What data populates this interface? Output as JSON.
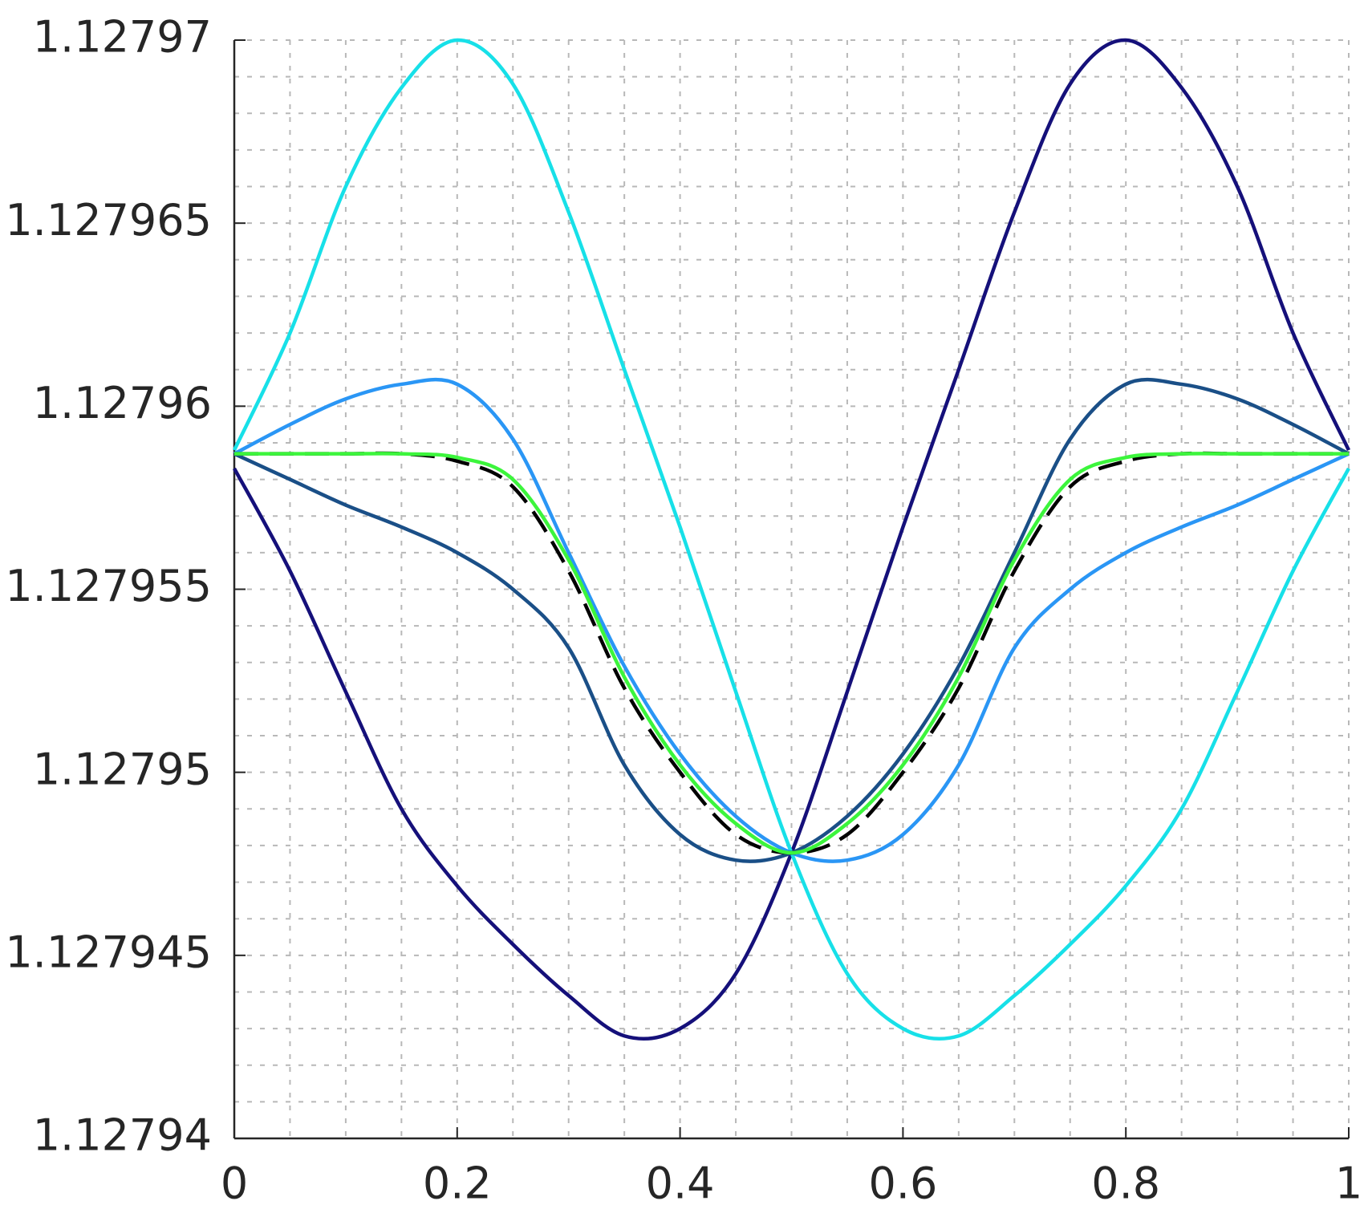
{
  "chart_data": {
    "type": "line",
    "x": [
      0,
      0.05,
      0.1,
      0.15,
      0.2,
      0.25,
      0.3,
      0.35,
      0.4,
      0.45,
      0.5,
      0.55,
      0.6,
      0.65,
      0.7,
      0.75,
      0.8,
      0.85,
      0.9,
      0.95,
      1
    ],
    "series": [
      {
        "color": "#15107a",
        "values": [
          1.1279583,
          1.1279555,
          1.1279522,
          1.127949,
          1.1279469,
          1.1279453,
          1.1279439,
          1.1279428,
          1.127943,
          1.1279445,
          1.1279478,
          1.1279522,
          1.1279567,
          1.127961,
          1.1279653,
          1.1279688,
          1.12797,
          1.1279687,
          1.127966,
          1.127962,
          1.1279588
        ]
      },
      {
        "color": "#17e0e8",
        "values": [
          1.1279588,
          1.127962,
          1.127966,
          1.1279687,
          1.12797,
          1.1279688,
          1.1279653,
          1.127961,
          1.1279567,
          1.1279522,
          1.1279478,
          1.1279445,
          1.127943,
          1.1279428,
          1.1279439,
          1.1279453,
          1.1279469,
          1.127949,
          1.1279522,
          1.1279555,
          1.1279583
        ]
      },
      {
        "color": "#2a96f5",
        "values": [
          1.1279587,
          1.1279595,
          1.1279602,
          1.1279606,
          1.1279606,
          1.1279591,
          1.127956,
          1.1279529,
          1.1279505,
          1.1279488,
          1.1279478,
          1.1279476,
          1.1279483,
          1.1279502,
          1.1279534,
          1.127955,
          1.127956,
          1.1279567,
          1.1279573,
          1.127958,
          1.1279587
        ]
      },
      {
        "color": "#1a4f87",
        "values": [
          1.1279587,
          1.127958,
          1.1279573,
          1.1279567,
          1.127956,
          1.127955,
          1.1279534,
          1.1279502,
          1.1279483,
          1.1279476,
          1.1279478,
          1.1279488,
          1.1279505,
          1.1279529,
          1.127956,
          1.1279591,
          1.1279606,
          1.1279606,
          1.1279602,
          1.1279595,
          1.1279587
        ]
      },
      {
        "color": "#000000",
        "dashed": true,
        "values": [
          1.1279587,
          1.1279587,
          1.1279587,
          1.1279587,
          1.1279585,
          1.1279578,
          1.1279555,
          1.1279523,
          1.12795,
          1.1279483,
          1.1279478,
          1.1279483,
          1.12795,
          1.1279523,
          1.1279555,
          1.1279578,
          1.1279585,
          1.1279587,
          1.1279587,
          1.1279587,
          1.1279587
        ]
      },
      {
        "color": "#3cf53c",
        "values": [
          1.1279587,
          1.1279587,
          1.1279587,
          1.1279587,
          1.1279586,
          1.127958,
          1.1279558,
          1.1279526,
          1.1279502,
          1.1279486,
          1.1279478,
          1.1279486,
          1.1279502,
          1.1279526,
          1.1279558,
          1.127958,
          1.1279586,
          1.1279587,
          1.1279587,
          1.1279587,
          1.1279587
        ]
      }
    ],
    "xlim": [
      0,
      1
    ],
    "xticks": [
      0,
      0.2,
      0.4,
      0.6,
      0.8,
      1
    ],
    "ylim": [
      1.12794,
      1.12797
    ],
    "yticks": [
      1.12794,
      1.127945,
      1.12795,
      1.127955,
      1.12796,
      1.127965,
      1.12797
    ],
    "xminorticks": [
      0.05,
      0.1,
      0.15,
      0.25,
      0.3,
      0.35,
      0.45,
      0.5,
      0.55,
      0.65,
      0.7,
      0.75,
      0.85,
      0.9,
      0.95
    ],
    "yminorticks": [
      1.127941,
      1.127942,
      1.127943,
      1.127944,
      1.127946,
      1.127947,
      1.127948,
      1.127949,
      1.127951,
      1.127952,
      1.127953,
      1.127954,
      1.127956,
      1.127957,
      1.127958,
      1.127959,
      1.127961,
      1.127962,
      1.127963,
      1.127964,
      1.127966,
      1.127967,
      1.127968,
      1.127969
    ],
    "grid": true
  }
}
